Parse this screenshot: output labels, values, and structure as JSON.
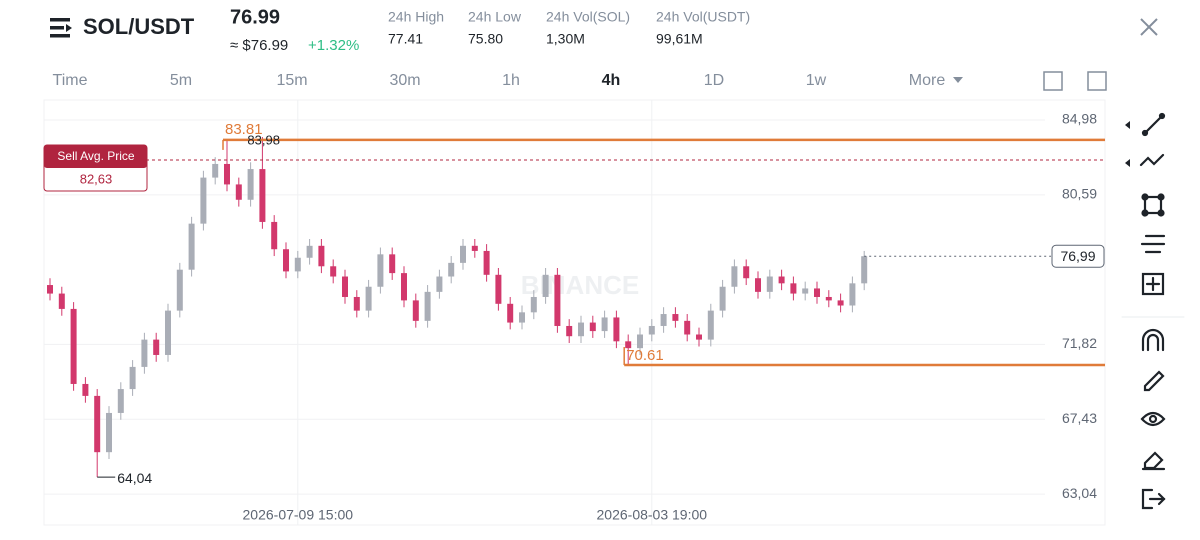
{
  "header": {
    "symbol": "SOL/USDT",
    "price": "76.99",
    "price_usd": "≈ $76.99",
    "change": "+1.32%",
    "stats": [
      {
        "label": "24h High",
        "value": "77.41"
      },
      {
        "label": "24h Low",
        "value": "75.80"
      },
      {
        "label": "24h Vol(SOL)",
        "value": "1,30M"
      },
      {
        "label": "24h Vol(USDT)",
        "value": "99,61M"
      }
    ]
  },
  "tabs": [
    "Time",
    "5m",
    "15m",
    "30m",
    "1h",
    "4h",
    "1D",
    "1w",
    "More"
  ],
  "active_tab": 5,
  "chart_data": {
    "type": "candlestick",
    "watermark": "BINANCE",
    "categories": [
      null,
      null,
      null,
      null,
      null,
      null,
      null,
      null,
      null,
      null,
      null,
      null,
      null,
      null,
      null,
      null,
      null,
      null,
      null,
      null,
      null,
      "2026-07-09 15:00",
      null,
      null,
      null,
      null,
      null,
      null,
      null,
      null,
      null,
      null,
      null,
      null,
      null,
      null,
      null,
      null,
      null,
      null,
      null,
      null,
      null,
      null,
      null,
      null,
      null,
      null,
      null,
      null,
      null,
      "2026-08-03 19:00",
      null,
      null,
      null,
      null,
      null,
      null,
      null,
      null,
      null,
      null,
      null,
      null,
      null,
      null,
      null,
      null,
      null,
      null
    ],
    "open": [
      75.3,
      74.8,
      73.9,
      69.5,
      68.8,
      65.5,
      67.8,
      69.2,
      70.5,
      72.1,
      71.2,
      73.8,
      76.2,
      78.9,
      81.6,
      82.4,
      81.2,
      80.3,
      82.1,
      79.0,
      77.4,
      76.1,
      76.9,
      77.6,
      76.4,
      75.8,
      74.6,
      73.8,
      75.2,
      77.1,
      76.0,
      74.4,
      73.2,
      74.9,
      75.8,
      76.6,
      77.6,
      77.3,
      75.9,
      74.2,
      73.1,
      73.7,
      74.6,
      75.9,
      72.9,
      72.3,
      73.1,
      72.6,
      73.4,
      72.0,
      71.6,
      72.4,
      72.9,
      73.6,
      73.2,
      72.4,
      72.1,
      73.8,
      75.2,
      76.4,
      75.7,
      74.9,
      75.8,
      75.4,
      74.8,
      75.1,
      74.6,
      74.4,
      74.1,
      75.4
    ],
    "high": [
      75.7,
      75.2,
      74.3,
      69.9,
      69.2,
      68.2,
      69.6,
      70.9,
      72.5,
      72.5,
      74.2,
      76.6,
      79.3,
      82.0,
      82.8,
      83.81,
      81.6,
      82.5,
      83.98,
      79.4,
      77.8,
      77.3,
      78.0,
      78.0,
      76.8,
      76.2,
      75.0,
      75.6,
      77.5,
      77.5,
      76.4,
      74.8,
      75.3,
      76.2,
      77.0,
      78.0,
      78.0,
      77.7,
      76.3,
      74.6,
      74.1,
      75.0,
      76.3,
      76.3,
      73.3,
      73.5,
      73.5,
      73.8,
      73.8,
      72.4,
      72.8,
      73.3,
      74.0,
      74.0,
      73.6,
      72.8,
      74.2,
      75.6,
      76.8,
      76.8,
      76.1,
      76.2,
      76.2,
      75.8,
      75.5,
      75.5,
      75.0,
      74.8,
      75.8,
      77.3
    ],
    "low": [
      74.4,
      73.5,
      69.1,
      68.4,
      64.04,
      65.1,
      67.4,
      68.8,
      70.1,
      70.8,
      70.8,
      73.4,
      75.8,
      78.5,
      81.2,
      80.8,
      79.9,
      79.9,
      78.6,
      77.0,
      75.7,
      75.7,
      76.5,
      76.0,
      75.4,
      74.2,
      73.4,
      73.4,
      74.8,
      75.6,
      74.0,
      72.8,
      72.8,
      74.5,
      75.4,
      76.2,
      76.9,
      75.5,
      73.8,
      72.7,
      72.7,
      73.3,
      74.2,
      72.5,
      71.9,
      71.9,
      72.2,
      72.2,
      71.6,
      70.61,
      71.2,
      72.0,
      72.5,
      72.8,
      72.0,
      71.7,
      71.7,
      73.4,
      74.8,
      75.3,
      74.5,
      74.5,
      75.0,
      74.4,
      74.4,
      74.2,
      74.0,
      73.7,
      73.7,
      75.0
    ],
    "close": [
      74.8,
      73.9,
      69.5,
      68.8,
      65.5,
      67.8,
      69.2,
      70.5,
      72.1,
      71.2,
      73.8,
      76.2,
      78.9,
      81.6,
      82.4,
      81.2,
      80.3,
      82.1,
      79.0,
      77.4,
      76.1,
      76.9,
      77.6,
      76.4,
      75.8,
      74.6,
      73.8,
      75.2,
      77.1,
      76.0,
      74.4,
      73.2,
      74.9,
      75.8,
      76.6,
      77.6,
      77.3,
      75.9,
      74.2,
      73.1,
      73.7,
      74.6,
      75.9,
      72.9,
      72.3,
      73.1,
      72.6,
      73.4,
      72.0,
      71.6,
      72.4,
      72.9,
      73.6,
      73.2,
      72.4,
      72.1,
      73.8,
      75.2,
      76.4,
      75.7,
      74.9,
      75.8,
      75.4,
      74.8,
      75.1,
      74.6,
      74.4,
      74.1,
      75.4,
      76.99
    ],
    "up_color": "#a9adb6",
    "down_color": "#d2386c",
    "ylim": [
      61.23,
      86.15
    ],
    "yticks": [
      {
        "value": 63.04,
        "label": "63,04"
      },
      {
        "value": 67.43,
        "label": "67,43"
      },
      {
        "value": 71.82,
        "label": "71,82"
      },
      {
        "value": 80.59,
        "label": "80,59"
      },
      {
        "value": 84.98,
        "label": "84,98"
      }
    ],
    "grid": true,
    "price_lines": [
      {
        "value": 83.81,
        "label": "83.81",
        "color": "#e07b39",
        "from": 15
      },
      {
        "value": 70.61,
        "label": "70.61",
        "color": "#e07b39",
        "from": 49
      }
    ],
    "high_marker": {
      "value": 83.98,
      "label": "83,98",
      "at": 18
    },
    "low_marker": {
      "value": 64.04,
      "label": "64,04",
      "at": 4
    },
    "sell_avg": {
      "label": "Sell Avg. Price",
      "value": 82.63,
      "value_label": "82,63",
      "color": "#b0243f"
    },
    "last_price": {
      "value": 76.99,
      "label": "76,99"
    }
  }
}
